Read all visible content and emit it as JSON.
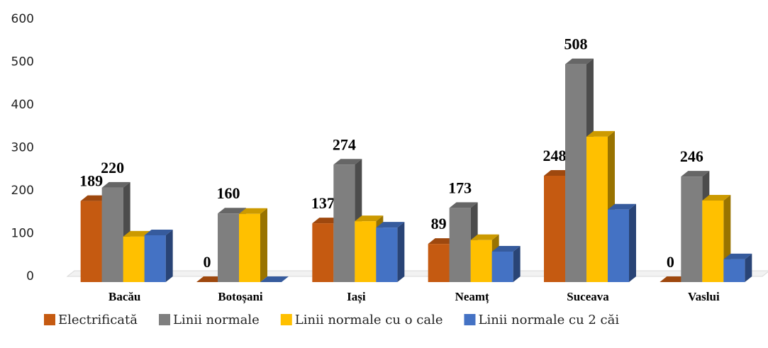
{
  "chart_data": {
    "type": "bar3d",
    "categories": [
      "Bacău",
      "Botoșani",
      "Iași",
      "Neamț",
      "Suceava",
      "Vaslui"
    ],
    "series": [
      {
        "name": "Electrificată",
        "color": "#c55a11",
        "values": [
          189,
          0,
          137,
          89,
          248,
          0
        ],
        "labels": true
      },
      {
        "name": "Linii normale",
        "color": "#7f7f7f",
        "values": [
          220,
          160,
          274,
          173,
          508,
          246
        ],
        "labels": true
      },
      {
        "name": "Linii normale cu o cale",
        "color": "#ffc000",
        "values": [
          106,
          159,
          142,
          98,
          339,
          190
        ],
        "labels": false
      },
      {
        "name": "Linii normale cu 2 căi",
        "color": "#4472c4",
        "values": [
          109,
          0,
          127,
          71,
          169,
          53
        ],
        "labels": false
      }
    ],
    "ylim": [
      0,
      600
    ],
    "yticks": [
      0,
      100,
      200,
      300,
      400,
      500,
      600
    ],
    "legend": "bottom"
  }
}
